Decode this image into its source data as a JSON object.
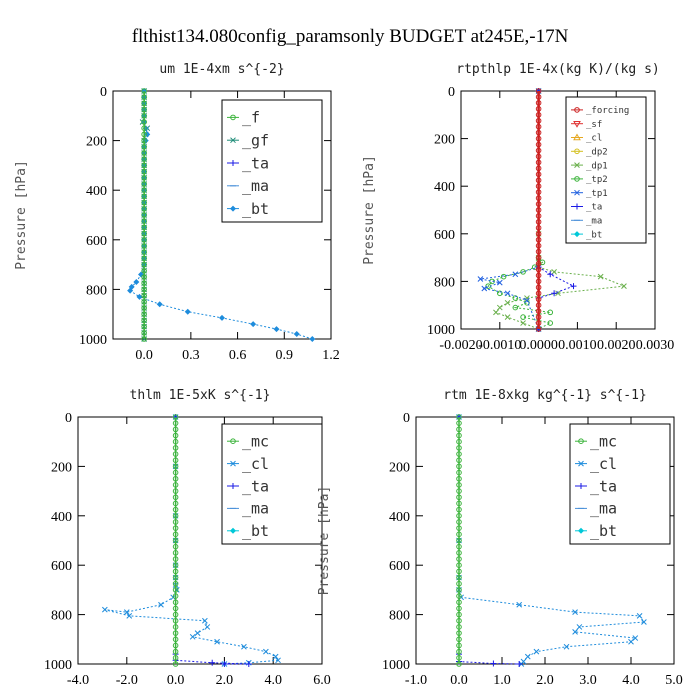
{
  "figure_title": "flthist134.080config_paramsonly  BUDGET at245E,-17N",
  "chart_data": [
    {
      "type": "line",
      "title": "um  1E-4xm s^{-2}",
      "ylabel": "Pressure [hPa]",
      "xlim": [
        -0.2,
        1.2
      ],
      "ylim": [
        0,
        1000
      ],
      "y_inverted": true,
      "xticks": [
        0.0,
        0.3,
        0.6,
        0.9,
        1.2
      ],
      "xtick_labels": [
        "0.0",
        "0.3",
        "0.6",
        "0.9",
        "1.2"
      ],
      "yticks": [
        0,
        200,
        400,
        600,
        800,
        1000
      ],
      "ytick_labels": [
        "0",
        "200",
        "400",
        "600",
        "800",
        "1000"
      ],
      "legend": "top-right",
      "legend_font": 15,
      "series": [
        {
          "name": "_f",
          "color": "#3cb43c",
          "marker": "circle",
          "x": [
            0,
            0,
            0,
            0,
            0,
            0,
            0,
            0,
            0,
            0,
            0,
            0,
            0,
            0,
            0,
            0,
            0,
            0,
            0,
            0,
            0,
            0,
            0,
            0,
            0,
            0,
            0,
            0,
            0,
            0,
            0,
            0,
            0,
            0,
            0,
            0,
            0,
            0,
            0,
            0,
            0
          ],
          "y": [
            0,
            25,
            50,
            75,
            100,
            125,
            150,
            175,
            200,
            225,
            250,
            275,
            300,
            325,
            350,
            375,
            400,
            425,
            450,
            475,
            500,
            525,
            550,
            575,
            600,
            625,
            650,
            675,
            700,
            725,
            750,
            775,
            800,
            825,
            850,
            875,
            900,
            925,
            950,
            975,
            1000
          ]
        },
        {
          "name": "_gf",
          "color": "#1e8c78",
          "marker": "cross",
          "x": [
            0,
            0,
            0,
            0,
            0,
            -0.01,
            0.02,
            0.01,
            0,
            0,
            0,
            0,
            0,
            0,
            0,
            0,
            0,
            0,
            0,
            0,
            0,
            0,
            0,
            0,
            0,
            0,
            0,
            0,
            0,
            0,
            0,
            0,
            0,
            0,
            0,
            0,
            0,
            0,
            0,
            0,
            0
          ],
          "y": [
            0,
            25,
            50,
            75,
            100,
            125,
            150,
            175,
            200,
            225,
            250,
            275,
            300,
            325,
            350,
            375,
            400,
            425,
            450,
            475,
            500,
            525,
            550,
            575,
            600,
            625,
            650,
            675,
            700,
            725,
            750,
            775,
            800,
            825,
            850,
            875,
            900,
            925,
            950,
            975,
            1000
          ]
        },
        {
          "name": "_ta",
          "color": "#1a1ae6",
          "marker": "plus",
          "x": [],
          "y": []
        },
        {
          "name": "_ma",
          "color": "#4a90d9",
          "marker": "dash",
          "x": [],
          "y": []
        },
        {
          "name": "_bt",
          "color": "#1e8cdc",
          "marker": "diamond",
          "dotted": true,
          "x": [
            0,
            0,
            0,
            0,
            0,
            0,
            0.01,
            0.02,
            0.01,
            0,
            0,
            0,
            0,
            0,
            0,
            0,
            0,
            0,
            0,
            0,
            0,
            0,
            0,
            0,
            0,
            0,
            0,
            0,
            0,
            -0.02,
            -0.05,
            -0.08,
            -0.09,
            -0.03,
            0.1,
            0.28,
            0.5,
            0.7,
            0.85,
            0.98,
            1.08
          ],
          "y": [
            0,
            25,
            50,
            75,
            100,
            125,
            150,
            175,
            200,
            225,
            250,
            275,
            300,
            325,
            350,
            375,
            400,
            425,
            450,
            475,
            500,
            525,
            550,
            575,
            600,
            625,
            650,
            675,
            700,
            740,
            770,
            790,
            805,
            830,
            860,
            890,
            915,
            940,
            960,
            980,
            1000
          ]
        }
      ]
    },
    {
      "type": "line",
      "title": "rtpthlp  1E-4x(kg K)/(kg s)",
      "ylabel": "Pressure [hPa]",
      "xlim": [
        -0.002,
        0.003
      ],
      "ylim": [
        0,
        1000
      ],
      "y_inverted": true,
      "xticks": [
        -0.002,
        -0.001,
        0,
        0.001,
        0.002,
        0.003
      ],
      "xtick_labels": [
        "-0.0020",
        "-0.0010",
        "0.0000",
        "0.0010",
        "0.0020",
        "0.0030"
      ],
      "yticks": [
        0,
        200,
        400,
        600,
        800,
        1000
      ],
      "ytick_labels": [
        "0",
        "200",
        "400",
        "600",
        "800",
        "1000"
      ],
      "legend": "top-right",
      "legend_font": 9,
      "series": [
        {
          "name": "_forcing",
          "color": "#cc2020",
          "marker": "circle",
          "thick": true,
          "x": [
            0,
            0,
            0,
            0,
            0,
            0,
            0,
            0,
            0,
            0,
            0,
            0,
            0,
            0,
            0,
            0,
            0,
            0,
            0,
            0,
            0,
            0,
            0,
            0,
            0,
            0,
            0,
            0,
            0,
            0,
            0,
            0,
            0,
            0,
            0,
            0,
            0,
            0,
            0,
            0,
            0
          ],
          "y": [
            0,
            25,
            50,
            75,
            100,
            125,
            150,
            175,
            200,
            225,
            250,
            275,
            300,
            325,
            350,
            375,
            400,
            425,
            450,
            475,
            500,
            525,
            550,
            575,
            600,
            625,
            650,
            675,
            700,
            725,
            750,
            775,
            800,
            825,
            850,
            875,
            900,
            925,
            950,
            975,
            1000
          ]
        },
        {
          "name": "_sf",
          "color": "#e03030",
          "marker": "triangle-down",
          "x": [],
          "y": []
        },
        {
          "name": "_cl",
          "color": "#e6a820",
          "marker": "triangle",
          "x": [],
          "y": []
        },
        {
          "name": "_dp2",
          "color": "#d4c020",
          "marker": "circle",
          "x": [],
          "y": []
        },
        {
          "name": "_dp1",
          "color": "#6ab04c",
          "marker": "cross",
          "x": [
            0,
            0,
            0,
            0,
            0,
            0.0004,
            0.0016,
            0.0022,
            0.0005,
            -0.0003,
            -0.0008,
            -0.001,
            -0.0011,
            -0.0008,
            -0.0004,
            0
          ],
          "y": [
            0,
            600,
            700,
            720,
            740,
            760,
            780,
            820,
            850,
            870,
            890,
            910,
            930,
            950,
            975,
            1000
          ]
        },
        {
          "name": "_tp2",
          "color": "#3cb43c",
          "marker": "circle",
          "x": [
            0,
            0,
            0.0001,
            -0.0001,
            -0.0004,
            -0.0009,
            -0.0012,
            -0.0013,
            -0.001,
            -0.0006,
            -0.0003,
            -0.0006,
            0.0003,
            -0.0004,
            0.0003,
            0
          ],
          "y": [
            0,
            700,
            720,
            740,
            760,
            780,
            800,
            820,
            850,
            870,
            890,
            910,
            930,
            950,
            975,
            1000
          ]
        },
        {
          "name": "_tp1",
          "color": "#2060e0",
          "marker": "cross",
          "x": [
            0,
            0,
            -0.0006,
            -0.0015,
            -0.001,
            -0.0014,
            -0.0008,
            -0.0003,
            0
          ],
          "y": [
            0,
            740,
            770,
            790,
            805,
            830,
            850,
            880,
            1000
          ]
        },
        {
          "name": "_ta",
          "color": "#1a1ae6",
          "marker": "plus",
          "x": [
            0,
            0,
            0.0003,
            0.0009,
            0.0004,
            0,
            0
          ],
          "y": [
            0,
            740,
            770,
            820,
            850,
            870,
            1000
          ]
        },
        {
          "name": "_ma",
          "color": "#4a90d9",
          "marker": "dash",
          "x": [],
          "y": []
        },
        {
          "name": "_bt",
          "color": "#00c8d8",
          "marker": "diamond",
          "x": [],
          "y": []
        }
      ]
    },
    {
      "type": "line",
      "title": "thlm  1E-5xK s^{-1}",
      "ylabel": "Pressure [hPa]",
      "xlim": [
        -4.0,
        6.0
      ],
      "ylim": [
        0,
        1000
      ],
      "y_inverted": true,
      "xticks": [
        -4.0,
        -2.0,
        0.0,
        2.0,
        4.0,
        6.0
      ],
      "xtick_labels": [
        "-4.0",
        "-2.0",
        "0.0",
        "2.0",
        "4.0",
        "6.0"
      ],
      "yticks": [
        0,
        200,
        400,
        600,
        800,
        1000
      ],
      "ytick_labels": [
        "0",
        "200",
        "400",
        "600",
        "800",
        "1000"
      ],
      "legend": "top-right",
      "legend_font": 15,
      "series": [
        {
          "name": "_mc",
          "color": "#3cb43c",
          "marker": "circle",
          "x": [
            0,
            0,
            0,
            0,
            0,
            0,
            0,
            0,
            0,
            0,
            0,
            0,
            0,
            0,
            0,
            0,
            0,
            0,
            0,
            0,
            0,
            0,
            0,
            0,
            0,
            0,
            0,
            0,
            0,
            0,
            0,
            0,
            0,
            0,
            0,
            0,
            0,
            0,
            0,
            0,
            0
          ],
          "y": [
            0,
            25,
            50,
            75,
            100,
            125,
            150,
            175,
            200,
            225,
            250,
            275,
            300,
            325,
            350,
            375,
            400,
            425,
            450,
            475,
            500,
            525,
            550,
            575,
            600,
            625,
            650,
            675,
            700,
            725,
            750,
            775,
            800,
            825,
            850,
            875,
            900,
            925,
            950,
            975,
            1000
          ]
        },
        {
          "name": "_cl",
          "color": "#1e8cdc",
          "marker": "cross",
          "x": [
            0,
            0,
            0,
            0,
            0,
            0,
            0,
            0.05,
            -0.1,
            -0.6,
            -2.0,
            -2.9,
            -1.9,
            1.2,
            1.3,
            0.9,
            0.7,
            1.7,
            2.8,
            3.7,
            4.1,
            4.2,
            3.0,
            2.0
          ],
          "y": [
            0,
            200,
            400,
            500,
            600,
            650,
            680,
            700,
            730,
            760,
            790,
            780,
            805,
            825,
            850,
            875,
            890,
            910,
            930,
            950,
            970,
            985,
            995,
            1000
          ]
        },
        {
          "name": "_ta",
          "color": "#1a1ae6",
          "marker": "plus",
          "x": [
            0,
            0,
            0,
            1.5,
            3.0,
            2.0
          ],
          "y": [
            0,
            960,
            985,
            995,
            1000,
            1000
          ]
        },
        {
          "name": "_ma",
          "color": "#4a90d9",
          "marker": "dash",
          "x": [],
          "y": []
        },
        {
          "name": "_bt",
          "color": "#00c8d8",
          "marker": "diamond",
          "x": [],
          "y": []
        }
      ]
    },
    {
      "type": "line",
      "title": "rtm  1E-8xkg kg^{-1} s^{-1}",
      "ylabel": "Pressure [hPa]",
      "xlim": [
        -1.0,
        5.0
      ],
      "ylim": [
        0,
        1000
      ],
      "y_inverted": true,
      "xticks": [
        -1.0,
        0.0,
        1.0,
        2.0,
        3.0,
        4.0,
        5.0
      ],
      "xtick_labels": [
        "-1.0",
        "0.0",
        "1.0",
        "2.0",
        "3.0",
        "4.0",
        "5.0"
      ],
      "yticks": [
        0,
        200,
        400,
        600,
        800,
        1000
      ],
      "ytick_labels": [
        "0",
        "200",
        "400",
        "600",
        "800",
        "1000"
      ],
      "legend": "top-right",
      "legend_font": 15,
      "series": [
        {
          "name": "_mc",
          "color": "#3cb43c",
          "marker": "circle",
          "x": [
            0,
            0,
            0,
            0,
            0,
            0,
            0,
            0,
            0,
            0,
            0,
            0,
            0,
            0,
            0,
            0,
            0,
            0,
            0,
            0,
            0,
            0,
            0,
            0,
            0,
            0,
            0,
            0,
            0,
            0,
            0,
            0,
            0,
            0,
            0,
            0,
            0,
            0,
            0,
            0,
            0
          ],
          "y": [
            0,
            25,
            50,
            75,
            100,
            125,
            150,
            175,
            200,
            225,
            250,
            275,
            300,
            325,
            350,
            375,
            400,
            425,
            450,
            475,
            500,
            525,
            550,
            575,
            600,
            625,
            650,
            675,
            700,
            725,
            750,
            775,
            800,
            825,
            850,
            875,
            900,
            925,
            950,
            975,
            1000
          ]
        },
        {
          "name": "_cl",
          "color": "#1e8cdc",
          "marker": "cross",
          "x": [
            0,
            0,
            0,
            0,
            0.05,
            1.4,
            2.7,
            4.2,
            4.3,
            2.8,
            2.7,
            4.1,
            4.0,
            2.5,
            1.8,
            1.6,
            1.5,
            1.45
          ],
          "y": [
            0,
            500,
            650,
            700,
            730,
            760,
            790,
            805,
            830,
            850,
            870,
            895,
            910,
            930,
            950,
            970,
            990,
            1000
          ]
        },
        {
          "name": "_ta",
          "color": "#1a1ae6",
          "marker": "plus",
          "x": [
            0,
            0,
            0,
            0.8,
            1.4
          ],
          "y": [
            0,
            960,
            990,
            998,
            1000
          ]
        },
        {
          "name": "_ma",
          "color": "#4a90d9",
          "marker": "dash",
          "x": [],
          "y": []
        },
        {
          "name": "_bt",
          "color": "#00c8d8",
          "marker": "diamond",
          "x": [],
          "y": []
        }
      ]
    }
  ]
}
